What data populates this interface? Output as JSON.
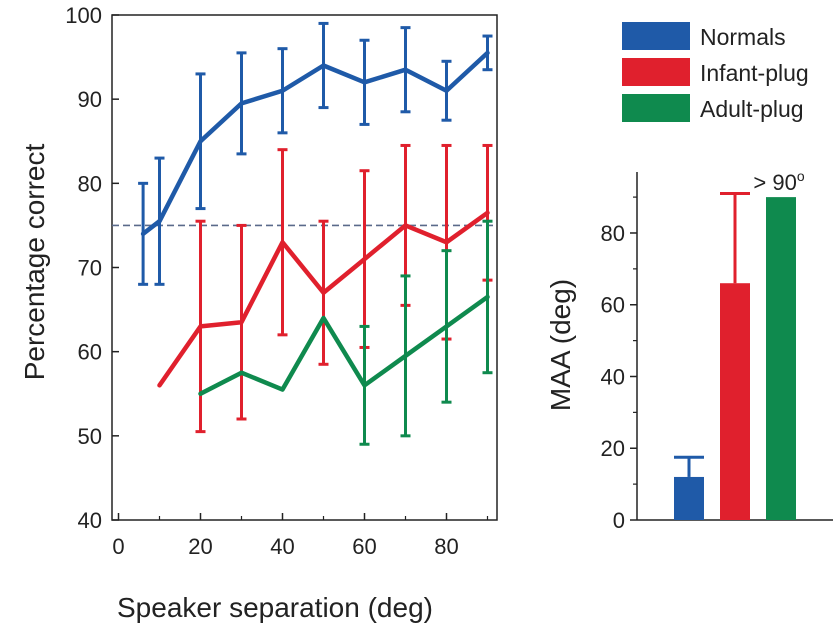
{
  "chart_data": [
    {
      "type": "line",
      "title": "",
      "xlabel": "Speaker separation (deg)",
      "ylabel": "Percentage correct",
      "xlim": [
        0,
        95
      ],
      "ylim": [
        40,
        100
      ],
      "xticks": [
        0,
        20,
        40,
        60,
        80
      ],
      "yticks": [
        40,
        50,
        60,
        70,
        80,
        90,
        100
      ],
      "reference_line": {
        "y": 75,
        "style": "dashed"
      },
      "grid": false,
      "legend": "top-right, outside plot",
      "series": [
        {
          "name": "Normals",
          "color": "#1f5aa8",
          "x": [
            6,
            10,
            20,
            30,
            40,
            50,
            60,
            70,
            80,
            90
          ],
          "y": [
            74,
            75.5,
            85,
            89.5,
            91,
            94,
            92,
            93.5,
            91,
            95.5
          ],
          "err": [
            6,
            7.5,
            8,
            6,
            5,
            5,
            5,
            5,
            3.5,
            2
          ]
        },
        {
          "name": "Infant-plug",
          "color": "#e0202d",
          "x": [
            10,
            20,
            30,
            40,
            50,
            60,
            70,
            80,
            90
          ],
          "y": [
            56,
            63,
            63.5,
            73,
            67,
            71,
            75,
            73,
            76.5
          ],
          "err": [
            null,
            12.5,
            11.5,
            11,
            8.5,
            10.5,
            9.5,
            11.5,
            8
          ]
        },
        {
          "name": "Adult-plug",
          "color": "#0f8a4e",
          "x": [
            20,
            30,
            40,
            50,
            60,
            70,
            80,
            90
          ],
          "y": [
            55,
            57.5,
            55.5,
            64,
            56,
            59.5,
            63,
            66.5
          ],
          "err": [
            null,
            null,
            null,
            null,
            7,
            9.5,
            9,
            9
          ]
        }
      ]
    },
    {
      "type": "bar",
      "title": "",
      "xlabel": "",
      "ylabel": "MAA (deg)",
      "ylim": [
        0,
        97
      ],
      "yticks": [
        0,
        20,
        40,
        60,
        80
      ],
      "grid": false,
      "categories": [
        "Normals",
        "Infant-plug",
        "Adult-plug"
      ],
      "values": [
        12,
        66,
        90
      ],
      "err": [
        5.5,
        25,
        null
      ],
      "colors": [
        "#1f5aa8",
        "#e0202d",
        "#0f8a4e"
      ],
      "annotation": {
        "text": "> 90",
        "superscript": "o",
        "category": "Adult-plug"
      }
    }
  ]
}
